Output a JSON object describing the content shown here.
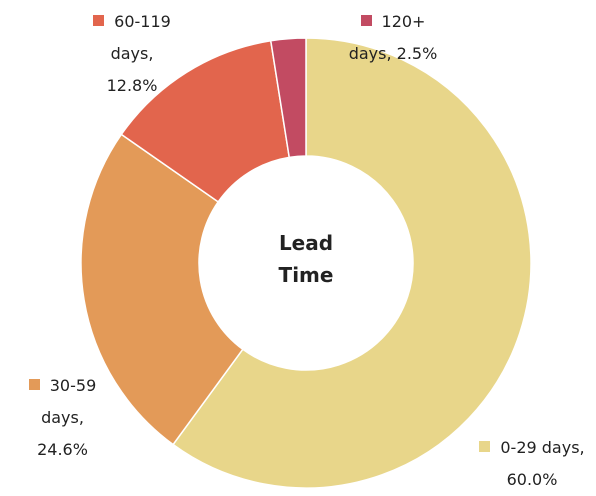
{
  "chart_data": {
    "type": "donut",
    "title": "Lead Time",
    "categories": [
      "0-29 days,",
      "30-59 days,",
      "60-119 days,",
      "120+ days,"
    ],
    "values": [
      60.0,
      24.6,
      12.8,
      2.5
    ],
    "value_labels": [
      "60.0%",
      "24.6%",
      "12.8%",
      "2.5%"
    ],
    "colors": [
      "#e8d68a",
      "#e39a58",
      "#e2654d",
      "#c24b62"
    ]
  }
}
